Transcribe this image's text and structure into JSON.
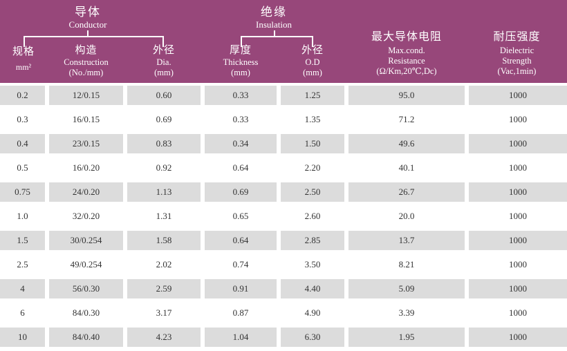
{
  "colors": {
    "header_bg": "#97477a",
    "header_text": "#ffffff",
    "alt_row_bg": "#dcdcdc",
    "row_bg": "#ffffff",
    "body_text": "#333333"
  },
  "table": {
    "groups": [
      {
        "zh": "导体",
        "en": "Conductor"
      },
      {
        "zh": "绝缘",
        "en": "Insulation"
      }
    ],
    "columns": [
      {
        "zh": "规格",
        "lines": [
          "mm²"
        ]
      },
      {
        "zh": "构造",
        "lines": [
          "Construction",
          "(No./mm)"
        ]
      },
      {
        "zh": "外径",
        "lines": [
          "Dia.",
          "(mm)"
        ]
      },
      {
        "zh": "厚度",
        "lines": [
          "Thickness",
          "(mm)"
        ]
      },
      {
        "zh": "外径",
        "lines": [
          "O.D",
          "(mm)"
        ]
      },
      {
        "zh": "最大导体电阻",
        "lines": [
          "Max.cond.",
          "Resistance",
          "(Ω/Km,20℃,Dc)"
        ]
      },
      {
        "zh": "耐压强度",
        "lines": [
          "Dielectric",
          "Strength",
          "(Vac,1min)"
        ]
      }
    ],
    "rows": [
      [
        "0.2",
        "12/0.15",
        "0.60",
        "0.33",
        "1.25",
        "95.0",
        "1000"
      ],
      [
        "0.3",
        "16/0.15",
        "0.69",
        "0.33",
        "1.35",
        "71.2",
        "1000"
      ],
      [
        "0.4",
        "23/0.15",
        "0.83",
        "0.34",
        "1.50",
        "49.6",
        "1000"
      ],
      [
        "0.5",
        "16/0.20",
        "0.92",
        "0.64",
        "2.20",
        "40.1",
        "1000"
      ],
      [
        "0.75",
        "24/0.20",
        "1.13",
        "0.69",
        "2.50",
        "26.7",
        "1000"
      ],
      [
        "1.0",
        "32/0.20",
        "1.31",
        "0.65",
        "2.60",
        "20.0",
        "1000"
      ],
      [
        "1.5",
        "30/0.254",
        "1.58",
        "0.64",
        "2.85",
        "13.7",
        "1000"
      ],
      [
        "2.5",
        "49/0.254",
        "2.02",
        "0.74",
        "3.50",
        "8.21",
        "1000"
      ],
      [
        "4",
        "56/0.30",
        "2.59",
        "0.91",
        "4.40",
        "5.09",
        "1000"
      ],
      [
        "6",
        "84/0.30",
        "3.17",
        "0.87",
        "4.90",
        "3.39",
        "1000"
      ],
      [
        "10",
        "84/0.40",
        "4.23",
        "1.04",
        "6.30",
        "1.95",
        "1000"
      ]
    ]
  }
}
